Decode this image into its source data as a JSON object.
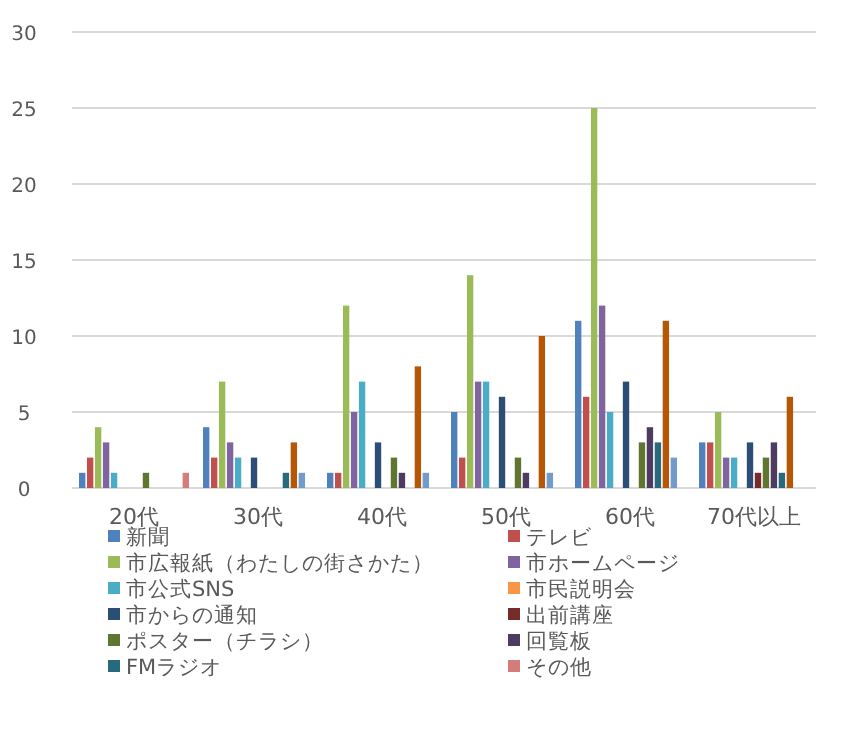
{
  "chart_data": {
    "type": "bar",
    "categories": [
      "20代",
      "30代",
      "40代",
      "50代",
      "60代",
      "70代以上"
    ],
    "ylim": [
      0,
      30
    ],
    "yticks": [
      0,
      5,
      10,
      15,
      20,
      25,
      30
    ],
    "grid": "y",
    "legend": "bottom",
    "series": [
      {
        "name": "新聞",
        "color": "#4f81bd",
        "values": [
          1,
          4,
          1,
          5,
          11,
          3
        ]
      },
      {
        "name": "テレビ",
        "color": "#c0504d",
        "values": [
          2,
          2,
          1,
          2,
          6,
          3
        ]
      },
      {
        "name": "市広報紙（わたしの街さかた）",
        "color": "#9bbb59",
        "values": [
          4,
          7,
          12,
          14,
          25,
          5
        ]
      },
      {
        "name": "市ホームページ",
        "color": "#8064a2",
        "values": [
          3,
          3,
          5,
          7,
          12,
          2
        ]
      },
      {
        "name": "市公式SNS",
        "color": "#4bacc6",
        "values": [
          1,
          2,
          7,
          7,
          5,
          2
        ]
      },
      {
        "name": "市民説明会",
        "color": "#f79646",
        "values": [
          0,
          0,
          0,
          0,
          0,
          0
        ]
      },
      {
        "name": "市からの通知",
        "color": "#2c4d75",
        "values": [
          0,
          2,
          3,
          6,
          7,
          3
        ]
      },
      {
        "name": "出前講座",
        "color": "#772c2a",
        "values": [
          0,
          0,
          0,
          0,
          0,
          1
        ]
      },
      {
        "name": "ポスター（チラシ）",
        "color": "#5f7530",
        "values": [
          1,
          0,
          2,
          2,
          3,
          2
        ]
      },
      {
        "name": "回覧板",
        "color": "#4d3b62",
        "values": [
          0,
          0,
          1,
          1,
          4,
          3
        ]
      },
      {
        "name": "FMラジオ",
        "color": "#276a7c",
        "values": [
          0,
          1,
          0,
          0,
          3,
          1
        ]
      },
      {
        "color": "#b65708",
        "values": [
          0,
          3,
          8,
          10,
          11,
          6
        ]
      },
      {
        "color": "#729aca",
        "values": [
          0,
          1,
          1,
          1,
          2,
          0
        ]
      },
      {
        "name": "その他",
        "color": "#d57c7a",
        "values": [
          1,
          0,
          0,
          0,
          0,
          0
        ]
      }
    ]
  }
}
